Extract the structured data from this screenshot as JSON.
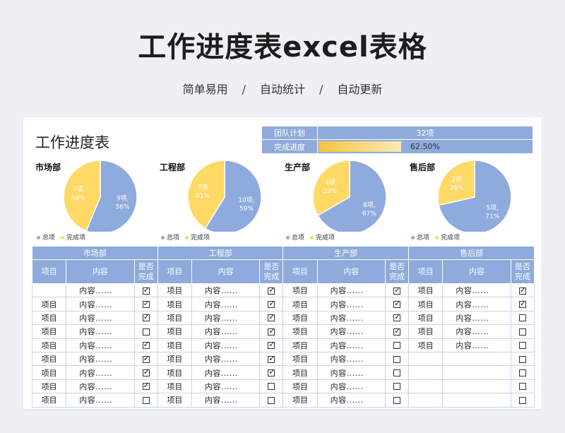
{
  "banner": {
    "title": "工作进度表excel表格",
    "features": [
      "简单易用",
      "自动统计",
      "自动更新"
    ],
    "separator": "/"
  },
  "sheet": {
    "title": "工作进度表",
    "summary": {
      "plan_label": "团队计划",
      "plan_value": "32项",
      "progress_label": "完成进度",
      "progress_value": "62.50%",
      "progress_fraction": 0.625
    }
  },
  "colors": {
    "total": "#8faadc",
    "done": "#ffd966",
    "header": "#8faadc",
    "progress": "#f6c23e"
  },
  "chart_data": [
    {
      "type": "pie",
      "title": "市场部",
      "labels": [
        "总项",
        "完成项"
      ],
      "values": [
        9,
        7
      ],
      "percent_labels": [
        "56%",
        "44%"
      ],
      "slice_labels": [
        "9项,",
        "7项"
      ],
      "legend": "bottom-left"
    },
    {
      "type": "pie",
      "title": "工程部",
      "labels": [
        "总项",
        "完成项"
      ],
      "values": [
        10,
        7
      ],
      "percent_labels": [
        "59%",
        "41%"
      ],
      "slice_labels": [
        "10项,",
        "7项"
      ],
      "legend": "bottom-left"
    },
    {
      "type": "pie",
      "title": "生产部",
      "labels": [
        "总项",
        "完成项"
      ],
      "values": [
        8,
        4
      ],
      "percent_labels": [
        "67%",
        "33%"
      ],
      "slice_labels": [
        "8项,",
        "4项"
      ],
      "legend": "bottom-left"
    },
    {
      "type": "pie",
      "title": "售后部",
      "labels": [
        "总项",
        "完成项"
      ],
      "values": [
        5,
        2
      ],
      "percent_labels": [
        "71%",
        "29%"
      ],
      "slice_labels": [
        "5项,",
        "2项"
      ],
      "legend": "bottom-left"
    }
  ],
  "table": {
    "departments": [
      "市场部",
      "工程部",
      "生产部",
      "售后部"
    ],
    "columns": [
      "项目",
      "内容",
      "是否完成"
    ],
    "rows": [
      [
        [
          "",
          "内容......",
          true
        ],
        [
          "项目",
          "内容......",
          true
        ],
        [
          "项目",
          "内容......",
          true
        ],
        [
          "项目",
          "内容......",
          true
        ]
      ],
      [
        [
          "项目",
          "内容......",
          true
        ],
        [
          "项目",
          "内容......",
          true
        ],
        [
          "项目",
          "内容......",
          true
        ],
        [
          "项目",
          "内容......",
          true
        ]
      ],
      [
        [
          "项目",
          "内容......",
          true
        ],
        [
          "项目",
          "内容......",
          true
        ],
        [
          "项目",
          "内容......",
          true
        ],
        [
          "项目",
          "内容......",
          false
        ]
      ],
      [
        [
          "项目",
          "内容......",
          false
        ],
        [
          "项目",
          "内容......",
          true
        ],
        [
          "项目",
          "内容......",
          true
        ],
        [
          "项目",
          "内容......",
          false
        ]
      ],
      [
        [
          "项目",
          "内容......",
          true
        ],
        [
          "项目",
          "内容......",
          true
        ],
        [
          "项目",
          "内容......",
          false
        ],
        [
          "项目",
          "内容......",
          false
        ]
      ],
      [
        [
          "项目",
          "内容......",
          true
        ],
        [
          "项目",
          "内容......",
          true
        ],
        [
          "项目",
          "内容......",
          false
        ],
        [
          "",
          "",
          false
        ]
      ],
      [
        [
          "项目",
          "内容......",
          true
        ],
        [
          "项目",
          "内容......",
          true
        ],
        [
          "项目",
          "内容......",
          false
        ],
        [
          "",
          "",
          false
        ]
      ],
      [
        [
          "项目",
          "内容......",
          true
        ],
        [
          "项目",
          "内容......",
          false
        ],
        [
          "项目",
          "内容......",
          false
        ],
        [
          "",
          "",
          false
        ]
      ],
      [
        [
          "项目",
          "内容......",
          false
        ],
        [
          "项目",
          "内容......",
          false
        ],
        [
          "项目",
          "内容......",
          false
        ],
        [
          "",
          "",
          false
        ]
      ]
    ]
  }
}
